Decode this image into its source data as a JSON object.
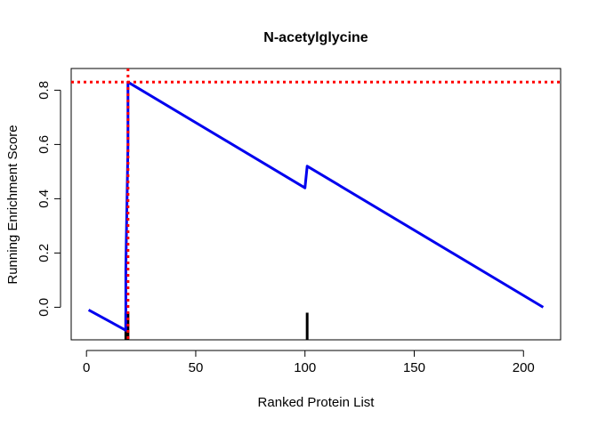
{
  "chart_data": {
    "type": "line",
    "title": "N-acetylglycine",
    "xlabel": "Ranked Protein List",
    "ylabel": "Running Enrichment Score",
    "xlim": [
      -7,
      217
    ],
    "ylim": [
      -0.12,
      0.88
    ],
    "xticks": [
      0,
      50,
      100,
      150,
      200
    ],
    "yticks": [
      0.0,
      0.2,
      0.4,
      0.6,
      0.8
    ],
    "xtick_labels": [
      "0",
      "50",
      "100",
      "150",
      "200"
    ],
    "ytick_labels": [
      "0.0",
      "0.2",
      "0.4",
      "0.6",
      "0.8"
    ],
    "grid": false,
    "series": [
      {
        "color": "#0000EE",
        "x": [
          1,
          18,
          18,
          19,
          19,
          19,
          100,
          101,
          209
        ],
        "y": [
          -0.01,
          -0.085,
          0.14,
          0.6,
          0.83,
          0.83,
          0.44,
          0.52,
          0.0
        ]
      }
    ],
    "hits": [
      {
        "x": 18,
        "y_top": -0.02
      },
      {
        "x": 19,
        "y_top": -0.02
      },
      {
        "x": 101,
        "y_top": -0.02
      }
    ],
    "peak_lines": {
      "color": "#FF0000",
      "x": 19,
      "y": 0.83
    }
  }
}
